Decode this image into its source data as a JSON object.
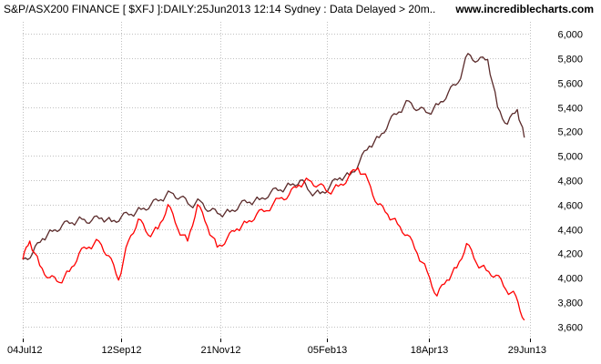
{
  "header": {
    "title": "S&P/ASX200 FINANCE [ $XFJ ]:DAILY:25Jun2013 12:14 Sydney : Data Delayed > 20m..",
    "source": "www.incrediblecharts.com"
  },
  "colors": {
    "background": "#ffffff",
    "grid": "#c0c0c0",
    "series_price": "#5a2a2a",
    "series_compare": "#ff0000"
  },
  "chart_data": {
    "type": "line",
    "title": "S&P/ASX200 FINANCE [ $XFJ ]:DAILY:25Jun2013 12:14 Sydney : Data Delayed > 20m..",
    "x_tick_labels": [
      "04Jul12",
      "12Sep12",
      "21Nov12",
      "05Feb13",
      "18Apr13",
      "29Jun13"
    ],
    "x_tick_dates": [
      "2012-07-04",
      "2012-09-12",
      "2012-11-21",
      "2013-02-05",
      "2013-04-18",
      "2013-06-29"
    ],
    "y_tick_labels": [
      "3,600",
      "3,800",
      "4,000",
      "4,200",
      "4,400",
      "4,600",
      "4,800",
      "5,000",
      "5,200",
      "5,400",
      "5,600",
      "5,800",
      "6,000"
    ],
    "y_tick_values": [
      3600,
      3800,
      4000,
      4200,
      4400,
      4600,
      4800,
      5000,
      5200,
      5400,
      5600,
      5800,
      6000
    ],
    "xlim": [
      "2012-07-04",
      "2013-06-29"
    ],
    "ylim": [
      3500,
      6100
    ],
    "grid": true,
    "y_axis_position": "right",
    "series": [
      {
        "color": "#5a2a2a",
        "x": [
          "2012-07-04",
          "2012-07-11",
          "2012-07-18",
          "2012-07-25",
          "2012-08-01",
          "2012-08-08",
          "2012-08-15",
          "2012-08-22",
          "2012-08-29",
          "2012-09-05",
          "2012-09-12",
          "2012-09-19",
          "2012-09-26",
          "2012-10-03",
          "2012-10-10",
          "2012-10-17",
          "2012-10-24",
          "2012-10-31",
          "2012-11-07",
          "2012-11-14",
          "2012-11-21",
          "2012-11-28",
          "2012-12-05",
          "2012-12-12",
          "2012-12-19",
          "2012-12-27",
          "2013-01-03",
          "2013-01-10",
          "2013-01-17",
          "2013-01-24",
          "2013-01-31",
          "2013-02-07",
          "2013-02-14",
          "2013-02-21",
          "2013-02-28",
          "2013-03-07",
          "2013-03-14",
          "2013-03-21",
          "2013-03-28",
          "2013-04-04",
          "2013-04-11",
          "2013-04-18",
          "2013-04-25",
          "2013-05-02",
          "2013-05-09",
          "2013-05-16",
          "2013-05-23",
          "2013-05-30",
          "2013-06-06",
          "2013-06-13",
          "2013-06-20",
          "2013-06-25"
        ],
        "y": [
          4150,
          4200,
          4320,
          4380,
          4430,
          4450,
          4480,
          4470,
          4490,
          4460,
          4500,
          4520,
          4560,
          4600,
          4640,
          4700,
          4660,
          4590,
          4630,
          4550,
          4520,
          4540,
          4600,
          4620,
          4640,
          4700,
          4720,
          4760,
          4800,
          4700,
          4690,
          4750,
          4820,
          4840,
          4950,
          5080,
          5150,
          5280,
          5360,
          5450,
          5380,
          5350,
          5420,
          5520,
          5600,
          5840,
          5780,
          5790,
          5400,
          5260,
          5380,
          5150
        ]
      },
      {
        "color": "#ff0000",
        "x": [
          "2012-07-04",
          "2012-07-09",
          "2012-07-16",
          "2012-07-23",
          "2012-07-30",
          "2012-08-06",
          "2012-08-13",
          "2012-08-20",
          "2012-08-27",
          "2012-09-03",
          "2012-09-10",
          "2012-09-17",
          "2012-09-24",
          "2012-10-01",
          "2012-10-08",
          "2012-10-15",
          "2012-10-22",
          "2012-10-29",
          "2012-11-05",
          "2012-11-12",
          "2012-11-19",
          "2012-11-26",
          "2012-12-03",
          "2012-12-10",
          "2012-12-17",
          "2012-12-24",
          "2013-01-02",
          "2013-01-09",
          "2013-01-16",
          "2013-01-23",
          "2013-01-30",
          "2013-02-06",
          "2013-02-13",
          "2013-02-20",
          "2013-02-27",
          "2013-03-06",
          "2013-03-13",
          "2013-03-20",
          "2013-03-27",
          "2013-04-03",
          "2013-04-10",
          "2013-04-17",
          "2013-04-24",
          "2013-05-01",
          "2013-05-08",
          "2013-05-15",
          "2013-05-22",
          "2013-05-29",
          "2013-06-05",
          "2013-06-12",
          "2013-06-19",
          "2013-06-25"
        ],
        "y": [
          4150,
          4300,
          4100,
          4000,
          3960,
          4050,
          4200,
          4250,
          4300,
          4180,
          3980,
          4300,
          4480,
          4350,
          4400,
          4600,
          4400,
          4300,
          4600,
          4420,
          4250,
          4320,
          4400,
          4450,
          4520,
          4550,
          4650,
          4680,
          4760,
          4800,
          4760,
          4700,
          4750,
          4820,
          4900,
          4800,
          4600,
          4520,
          4440,
          4350,
          4200,
          4050,
          3850,
          3980,
          4080,
          4280,
          4120,
          4060,
          4020,
          3900,
          3850,
          3650
        ]
      }
    ]
  }
}
